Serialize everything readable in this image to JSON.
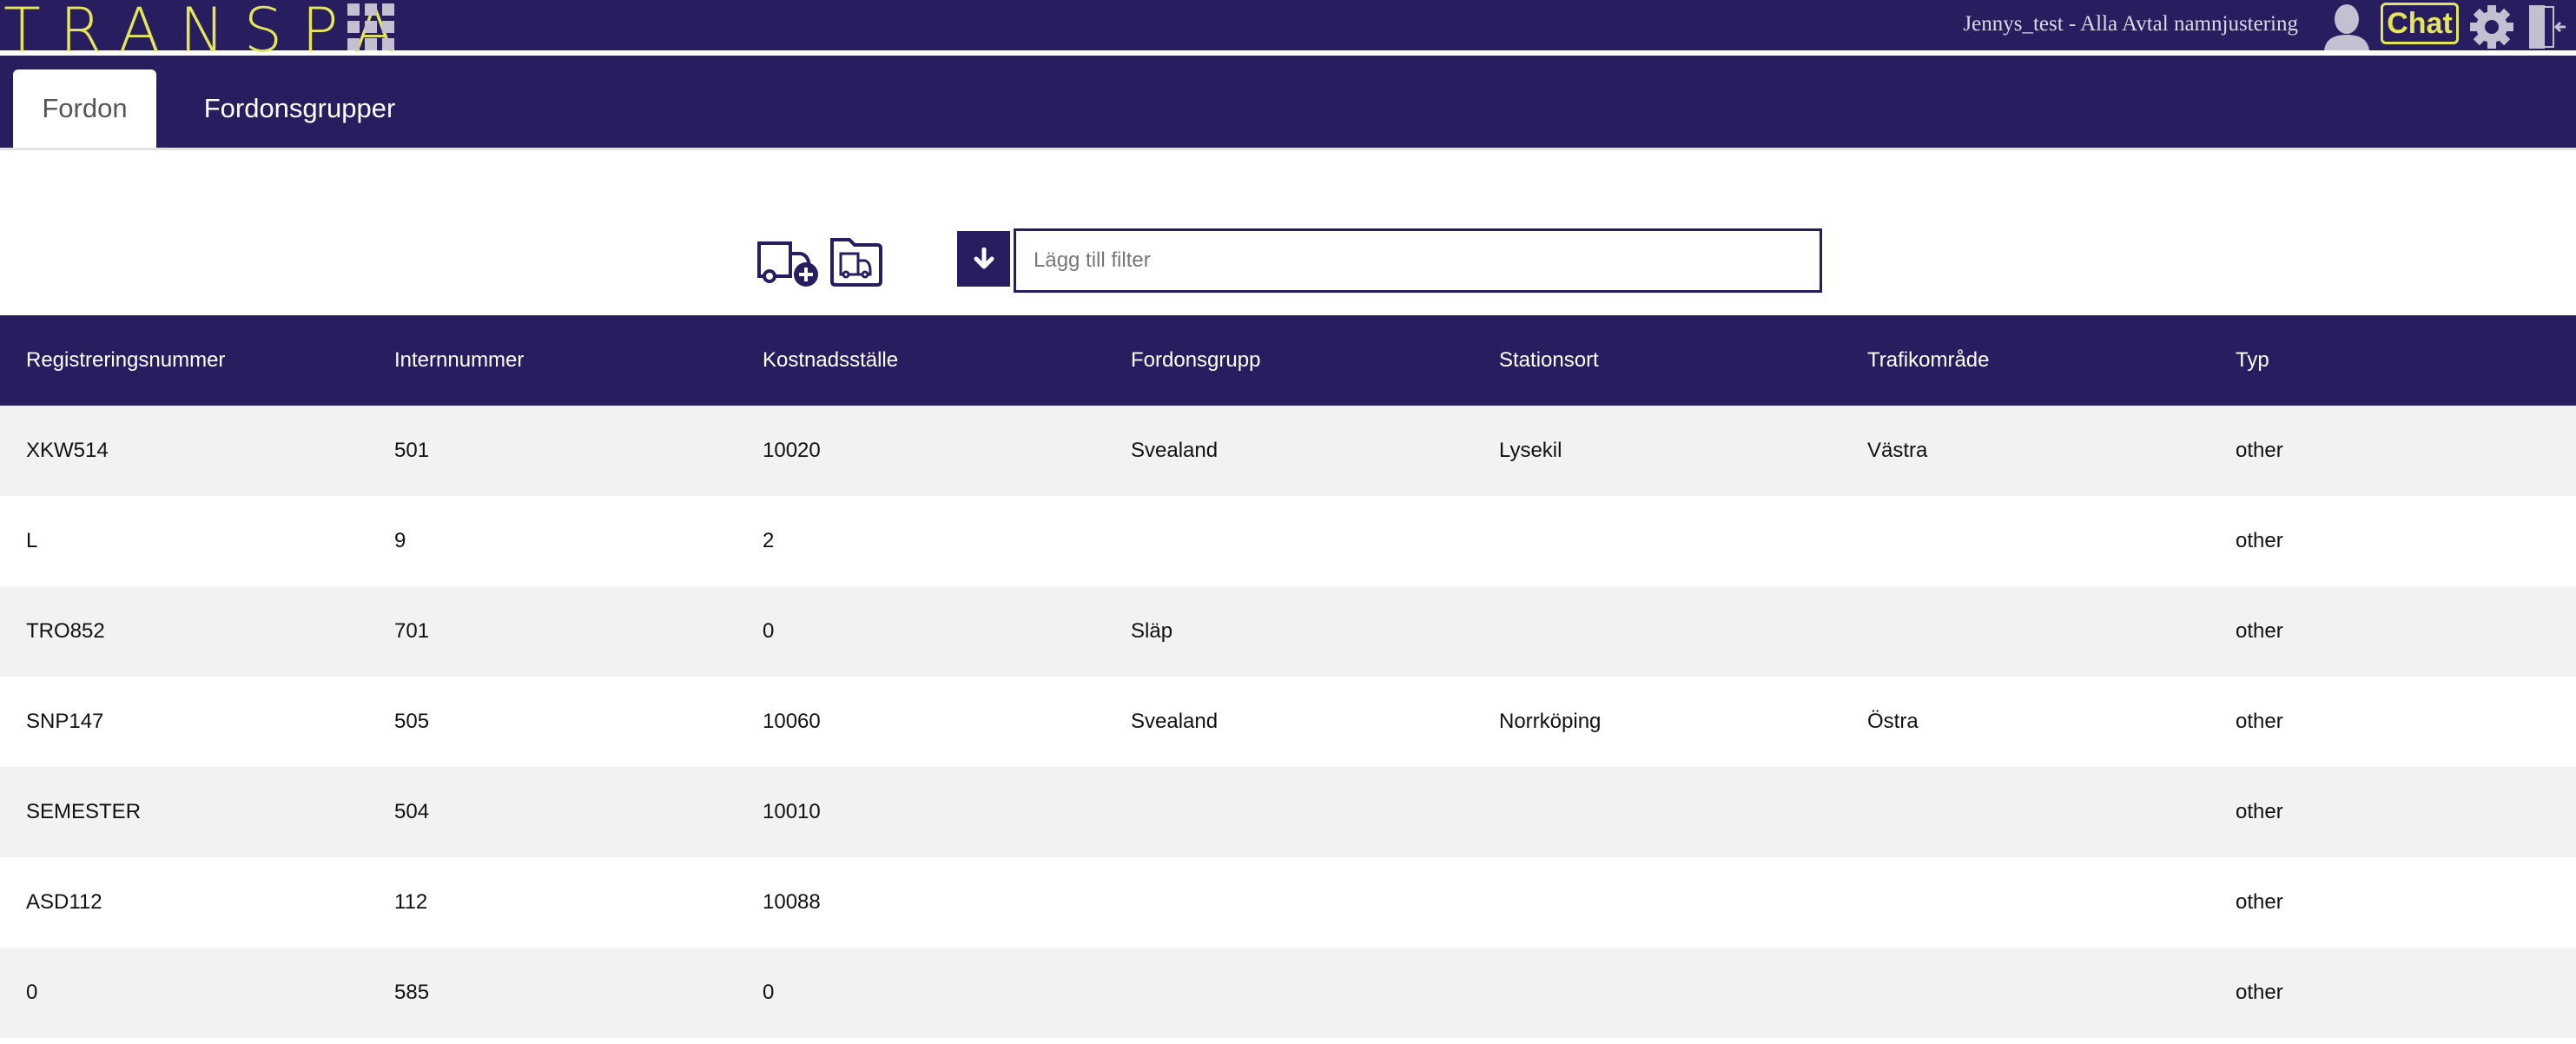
{
  "header": {
    "logo": "TRANSPA",
    "context": "Jennys_test - Alla Avtal namnjustering",
    "chat_label": "Chat",
    "icons": [
      "apps-grid-icon",
      "user-icon",
      "chat-icon",
      "gear-icon",
      "logout-icon"
    ]
  },
  "tabs": [
    {
      "label": "Fordon",
      "active": true
    },
    {
      "label": "Fordonsgrupper",
      "active": false
    }
  ],
  "toolbar": {
    "filter_placeholder": "Lägg till filter",
    "icons": [
      "add-vehicle-icon",
      "vehicle-folder-icon",
      "arrow-down-icon"
    ]
  },
  "colors": {
    "brand": "#271d5f",
    "logo": "#e4e65a"
  },
  "table": {
    "columns": [
      "Registreringsnummer",
      "Internnummer",
      "Kostnadsställe",
      "Fordonsgrupp",
      "Stationsort",
      "Trafikområde",
      "Typ"
    ],
    "rows": [
      [
        "XKW514",
        "501",
        "10020",
        "Svealand",
        "Lysekil",
        "Västra",
        "other"
      ],
      [
        "L",
        "9",
        "2",
        "",
        "",
        "",
        "other"
      ],
      [
        "TRO852",
        "701",
        "0",
        "Släp",
        "",
        "",
        "other"
      ],
      [
        "SNP147",
        "505",
        "10060",
        "Svealand",
        "Norrköping",
        "Östra",
        "other"
      ],
      [
        "SEMESTER",
        "504",
        "10010",
        "",
        "",
        "",
        "other"
      ],
      [
        "ASD112",
        "112",
        "10088",
        "",
        "",
        "",
        "other"
      ],
      [
        "0",
        "585",
        "0",
        "",
        "",
        "",
        "other"
      ]
    ]
  }
}
